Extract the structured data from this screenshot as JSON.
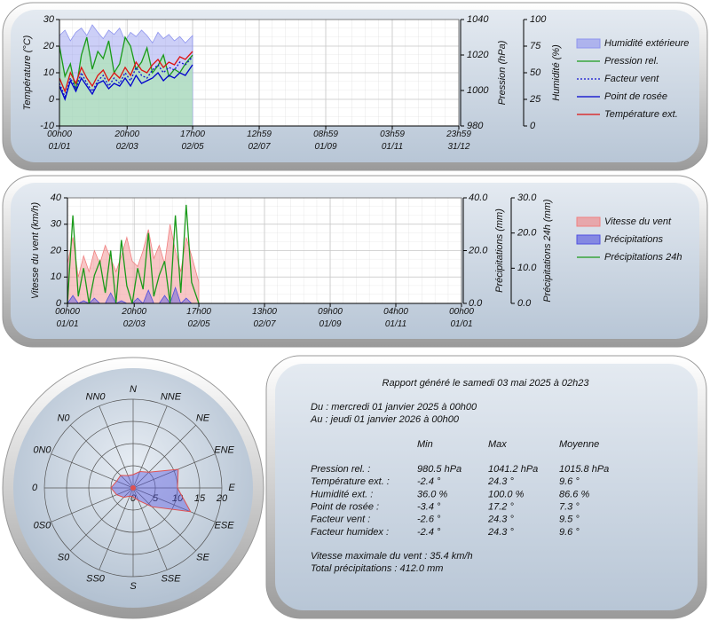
{
  "chart_data": [
    {
      "type": "line",
      "xlim": [
        0,
        365
      ],
      "xticks": [
        {
          "value": 0,
          "label": "00h00\n01/01"
        },
        {
          "value": 61.83,
          "label": "20h00\n02/03"
        },
        {
          "value": 121.71,
          "label": "17h00\n02/05"
        },
        {
          "value": 182.54,
          "label": "12h59\n02/07"
        },
        {
          "value": 243.37,
          "label": "08h59\n01/09"
        },
        {
          "value": 304.17,
          "label": "03h59\n01/11"
        },
        {
          "value": 364.99,
          "label": "23h59\n31/12"
        }
      ],
      "ylabel": "Température (°C)",
      "ylim": [
        -10,
        30
      ],
      "yticks": [
        -10,
        0,
        10,
        20,
        30
      ],
      "y2label": "Pression (hPa)",
      "y2lim": [
        980,
        1040
      ],
      "y2ticks": [
        980,
        1000,
        1020,
        1040
      ],
      "y3label": "Humidité (%)",
      "y3lim": [
        0,
        100
      ],
      "y3ticks": [
        0,
        25,
        50,
        75,
        100
      ],
      "grid": true,
      "x": [
        0,
        5,
        10,
        15,
        20,
        25,
        30,
        35,
        40,
        45,
        50,
        55,
        60,
        65,
        70,
        75,
        80,
        85,
        90,
        95,
        100,
        105,
        110,
        115,
        121.7
      ],
      "series": [
        {
          "name": "Humidité extérieure",
          "kind": "area",
          "axis": "y3",
          "color": "#8f95ee",
          "values": [
            85,
            90,
            80,
            88,
            92,
            85,
            95,
            88,
            82,
            90,
            86,
            92,
            80,
            88,
            84,
            90,
            85,
            78,
            88,
            82,
            86,
            80,
            84,
            78,
            85
          ]
        },
        {
          "name": "Pression rel.",
          "kind": "line",
          "axis": "y2",
          "color": "#1a9a1a",
          "fill": "#a8eaa8",
          "values": [
            1025,
            1008,
            1015,
            1000,
            1020,
            1030,
            1012,
            1022,
            1018,
            1028,
            1010,
            1015,
            1030,
            1025,
            1012,
            1016,
            1024,
            1010,
            1014,
            1020,
            1008,
            1012,
            1010,
            1015,
            1020
          ]
        },
        {
          "name": "Facteur vent",
          "kind": "line",
          "dashed": true,
          "color": "#1010d0",
          "values": [
            6,
            1,
            8,
            4,
            10,
            6,
            3,
            7,
            9,
            5,
            8,
            6,
            10,
            7,
            12,
            9,
            8,
            11,
            13,
            10,
            12,
            11,
            14,
            13,
            16
          ]
        },
        {
          "name": "Point de rosée",
          "kind": "line",
          "color": "#0000cc",
          "values": [
            5,
            0,
            7,
            3,
            8,
            5,
            2,
            6,
            7,
            4,
            6,
            5,
            8,
            5,
            9,
            6,
            7,
            8,
            10,
            7,
            9,
            8,
            10,
            9,
            13
          ]
        },
        {
          "name": "Température ext.",
          "kind": "line",
          "color": "#dd1111",
          "values": [
            8,
            3,
            10,
            6,
            12,
            8,
            5,
            9,
            11,
            7,
            10,
            8,
            12,
            9,
            14,
            11,
            10,
            13,
            15,
            12,
            14,
            13,
            16,
            15,
            18
          ]
        }
      ]
    },
    {
      "type": "line",
      "xlim": [
        0,
        365
      ],
      "xticks": [
        {
          "value": 0,
          "label": "00h00\n01/01"
        },
        {
          "value": 61.83,
          "label": "20h00\n02/03"
        },
        {
          "value": 121.71,
          "label": "17h00\n02/05"
        },
        {
          "value": 182.54,
          "label": "13h00\n02/07"
        },
        {
          "value": 243.38,
          "label": "09h00\n01/09"
        },
        {
          "value": 304.17,
          "label": "04h00\n01/11"
        },
        {
          "value": 365,
          "label": "00h00\n01/01"
        }
      ],
      "ylabel": "Vitesse du vent (km/h)",
      "ylim": [
        0,
        40
      ],
      "yticks": [
        0,
        10,
        20,
        30,
        40
      ],
      "y2label": "Précipitations (mm)",
      "y2lim": [
        0,
        40
      ],
      "y2ticks": [
        {
          "value": 0,
          "label": "0.0"
        },
        {
          "value": 20,
          "label": "20.0"
        },
        {
          "value": 40,
          "label": "40.0"
        }
      ],
      "y3label": "Précipitations 24h (mm)",
      "y3lim": [
        0,
        30
      ],
      "y3ticks": [
        {
          "value": 0,
          "label": "0.0"
        },
        {
          "value": 10,
          "label": "10.0"
        },
        {
          "value": 20,
          "label": "20.0"
        },
        {
          "value": 30,
          "label": "30.0"
        }
      ],
      "grid": true,
      "x": [
        0,
        5,
        10,
        15,
        20,
        25,
        30,
        35,
        40,
        45,
        50,
        55,
        60,
        65,
        70,
        75,
        80,
        85,
        90,
        95,
        100,
        105,
        110,
        115,
        121.7
      ],
      "series": [
        {
          "name": "Vitesse du vent",
          "kind": "area",
          "color": "#f08080",
          "values": [
            15,
            25,
            10,
            18,
            12,
            20,
            15,
            22,
            17,
            12,
            18,
            25,
            16,
            14,
            20,
            28,
            17,
            22,
            15,
            30,
            20,
            12,
            25,
            18,
            8
          ]
        },
        {
          "name": "Précipitations",
          "kind": "area",
          "axis": "y2",
          "color": "#5050e0",
          "values": [
            0,
            3,
            0,
            1,
            0,
            2,
            0,
            0,
            4,
            0,
            1,
            0,
            0,
            2,
            0,
            5,
            0,
            0,
            3,
            0,
            6,
            0,
            2,
            0,
            0
          ]
        },
        {
          "name": "Précipitations 24h",
          "kind": "line",
          "axis": "y3",
          "color": "#1a9a1a",
          "values": [
            0,
            25,
            2,
            10,
            0,
            8,
            12,
            3,
            15,
            0,
            18,
            5,
            0,
            10,
            4,
            20,
            2,
            8,
            12,
            0,
            25,
            3,
            28,
            6,
            0
          ]
        }
      ]
    },
    {
      "type": "polar",
      "categories": [
        "N",
        "NNE",
        "NE",
        "ENE",
        "E",
        "ESE",
        "SE",
        "SSE",
        "S",
        "SS0",
        "S0",
        "0S0",
        "0",
        "0N0",
        "N0",
        "NN0"
      ],
      "values": [
        3,
        4,
        5,
        11,
        10,
        14,
        6,
        3,
        2,
        2,
        3,
        4,
        5,
        4,
        4,
        3
      ],
      "color": "#5a5ae0",
      "edge_color": "#e05050",
      "rlim": [
        0,
        20
      ],
      "rticks": [
        0,
        5,
        10,
        15,
        20
      ]
    }
  ],
  "report": {
    "title": "Rapport généré le samedi 03 mai 2025 à 02h23",
    "from": "Du : mercredi 01 janvier 2025 à 00h00",
    "to": "Au : jeudi 01 janvier 2026 à 00h00",
    "columns": [
      "Min",
      "Max",
      "Moyenne"
    ],
    "rows": [
      [
        "Pression rel. :",
        "980.5 hPa",
        "1041.2 hPa",
        "1015.8 hPa"
      ],
      [
        "Température ext. :",
        "-2.4 °",
        "24.3 °",
        "9.6 °"
      ],
      [
        "Humidité ext. :",
        "36.0 %",
        "100.0 %",
        "86.6 %"
      ],
      [
        "Point de rosée :",
        "-3.4 °",
        "17.2 °",
        "7.3 °"
      ],
      [
        "Facteur vent :",
        "-2.6 °",
        "24.3 °",
        "9.5 °"
      ],
      [
        "Facteur humidex :",
        "-2.4 °",
        "24.3 °",
        "9.6 °"
      ]
    ],
    "max_wind": "Vitesse maximale du vent : 35.4 km/h",
    "total_rain": "Total précipitations : 412.0 mm"
  }
}
